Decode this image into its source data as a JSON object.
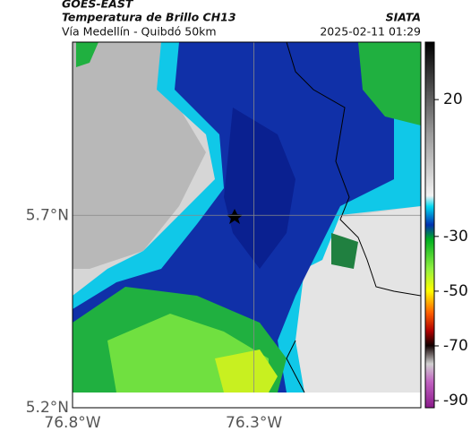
{
  "header": {
    "source": "GOES-EAST",
    "title": "Temperatura de Brillo CH13",
    "subtitle": "Vía Medellín - Quibdó 50km",
    "timestamp": "2025-02-11 01:29",
    "brand": "SIATA"
  },
  "map": {
    "lonlim": [
      -76.8,
      -75.84
    ],
    "latlim": [
      5.2,
      6.15
    ],
    "lonticks": [
      {
        "value": -76.8,
        "label": "76.8°W"
      },
      {
        "value": -76.3,
        "label": "76.3°W"
      }
    ],
    "latticks": [
      {
        "value": 5.2,
        "label": "5.2°N"
      },
      {
        "value": 5.7,
        "label": "5.7°N"
      }
    ]
  },
  "colorbar": {
    "lim": [
      -92.6,
      41
    ],
    "ticks": [
      20,
      -30,
      -50,
      -70,
      -90
    ]
  }
}
